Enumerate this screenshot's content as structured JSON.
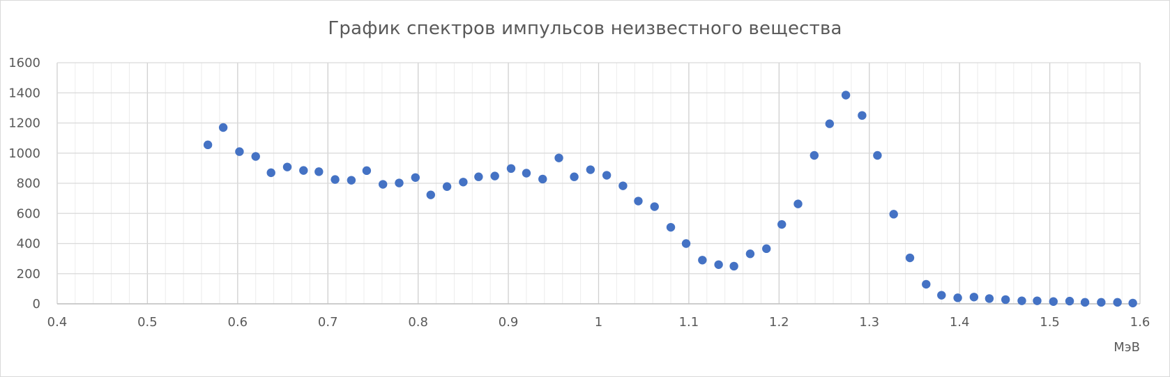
{
  "chart_data": {
    "type": "scatter",
    "title": "График спектров импульсов неизвестного вещества",
    "xlabel": "МэВ",
    "ylabel": "",
    "xlim": [
      0.4,
      1.6
    ],
    "ylim": [
      0,
      1600
    ],
    "x_ticks": [
      0.4,
      0.5,
      0.6,
      0.7,
      0.8,
      0.9,
      1.0,
      1.1,
      1.2,
      1.3,
      1.4,
      1.5,
      1.6
    ],
    "x_tick_labels": [
      "0.4",
      "0.5",
      "0.6",
      "0.7",
      "0.8",
      "0.9",
      "1",
      "1.1",
      "1.2",
      "1.3",
      "1.4",
      "1.5",
      "1.6"
    ],
    "y_ticks": [
      0,
      200,
      400,
      600,
      800,
      1000,
      1200,
      1400,
      1600
    ],
    "y_tick_labels": [
      "0",
      "200",
      "400",
      "600",
      "800",
      "1000",
      "1200",
      "1400",
      "1600"
    ],
    "x_minor_step": 0.02,
    "grid": true,
    "marker_color": "#4472c4",
    "series": [
      {
        "points": [
          [
            0.567,
            1055
          ],
          [
            0.584,
            1170
          ],
          [
            0.602,
            1010
          ],
          [
            0.62,
            978
          ],
          [
            0.637,
            870
          ],
          [
            0.655,
            908
          ],
          [
            0.673,
            885
          ],
          [
            0.69,
            877
          ],
          [
            0.708,
            825
          ],
          [
            0.726,
            820
          ],
          [
            0.743,
            884
          ],
          [
            0.761,
            793
          ],
          [
            0.779,
            802
          ],
          [
            0.797,
            838
          ],
          [
            0.814,
            723
          ],
          [
            0.832,
            778
          ],
          [
            0.85,
            808
          ],
          [
            0.867,
            843
          ],
          [
            0.885,
            848
          ],
          [
            0.903,
            898
          ],
          [
            0.92,
            867
          ],
          [
            0.938,
            828
          ],
          [
            0.956,
            968
          ],
          [
            0.973,
            843
          ],
          [
            0.991,
            890
          ],
          [
            1.009,
            853
          ],
          [
            1.027,
            783
          ],
          [
            1.044,
            682
          ],
          [
            1.062,
            645
          ],
          [
            1.08,
            508
          ],
          [
            1.097,
            400
          ],
          [
            1.115,
            290
          ],
          [
            1.133,
            260
          ],
          [
            1.15,
            250
          ],
          [
            1.168,
            332
          ],
          [
            1.186,
            366
          ],
          [
            1.203,
            527
          ],
          [
            1.221,
            663
          ],
          [
            1.239,
            985
          ],
          [
            1.256,
            1195
          ],
          [
            1.274,
            1385
          ],
          [
            1.292,
            1250
          ],
          [
            1.309,
            985
          ],
          [
            1.327,
            595
          ],
          [
            1.345,
            305
          ],
          [
            1.363,
            130
          ],
          [
            1.38,
            57
          ],
          [
            1.398,
            40
          ],
          [
            1.416,
            45
          ],
          [
            1.433,
            35
          ],
          [
            1.451,
            28
          ],
          [
            1.469,
            20
          ],
          [
            1.486,
            20
          ],
          [
            1.504,
            15
          ],
          [
            1.522,
            18
          ],
          [
            1.539,
            10
          ],
          [
            1.557,
            10
          ],
          [
            1.575,
            10
          ],
          [
            1.592,
            5
          ]
        ]
      }
    ]
  }
}
